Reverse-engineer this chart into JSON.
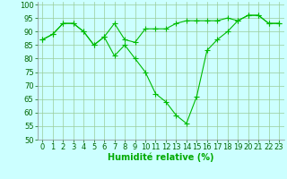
{
  "x": [
    0,
    1,
    2,
    3,
    4,
    5,
    6,
    7,
    8,
    9,
    10,
    11,
    12,
    13,
    14,
    15,
    16,
    17,
    18,
    19,
    20,
    21,
    22,
    23
  ],
  "line1": [
    87,
    89,
    93,
    93,
    90,
    85,
    88,
    93,
    87,
    86,
    91,
    91,
    91,
    93,
    94,
    94,
    94,
    94,
    95,
    94,
    96,
    96,
    93,
    93
  ],
  "line2": [
    87,
    89,
    93,
    93,
    90,
    85,
    88,
    81,
    85,
    80,
    75,
    67,
    64,
    59,
    56,
    66,
    83,
    87,
    90,
    94,
    96,
    96,
    93,
    93
  ],
  "bg_color": "#ccffff",
  "grid_color": "#99cc99",
  "line_color": "#00bb00",
  "marker_size": 2.5,
  "xlim": [
    -0.5,
    23.5
  ],
  "ylim": [
    50,
    101
  ],
  "yticks": [
    50,
    55,
    60,
    65,
    70,
    75,
    80,
    85,
    90,
    95,
    100
  ],
  "xticks": [
    0,
    1,
    2,
    3,
    4,
    5,
    6,
    7,
    8,
    9,
    10,
    11,
    12,
    13,
    14,
    15,
    16,
    17,
    18,
    19,
    20,
    21,
    22,
    23
  ],
  "xlabel": "Humidité relative (%)",
  "xlabel_color": "#00aa00",
  "xlabel_fontsize": 7,
  "tick_fontsize": 6,
  "linewidth": 0.8
}
